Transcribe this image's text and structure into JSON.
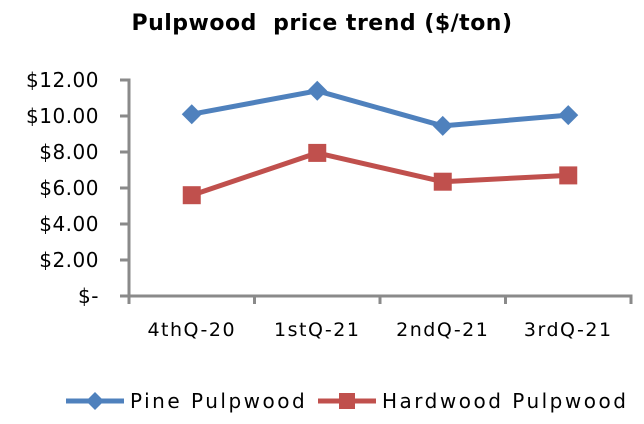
{
  "chart_data": {
    "type": "line",
    "title": "Pulpwood  price trend ($/ton)",
    "categories": [
      "4thQ-20",
      "1stQ-21",
      "2ndQ-21",
      "3rdQ-21"
    ],
    "series": [
      {
        "name": "Pine Pulpwood",
        "values": [
          10.1,
          11.4,
          9.45,
          10.05
        ],
        "color": "#4F81BD",
        "marker": "diamond"
      },
      {
        "name": "Hardwood Pulpwood",
        "values": [
          5.6,
          7.95,
          6.35,
          6.7
        ],
        "color": "#C0504D",
        "marker": "square"
      }
    ],
    "y_axis": {
      "min": 0,
      "max": 12,
      "tick_values": [
        12,
        10,
        8,
        6,
        4,
        2,
        0
      ],
      "tick_labels": [
        "$12.00",
        "$10.00",
        "$8.00",
        "$6.00",
        "$4.00",
        "$2.00",
        "$-"
      ]
    },
    "grid": false,
    "legend_position": "bottom",
    "axis_color": "#8A8A8A",
    "background_color": "#FFFFFF",
    "text_color": "#000000"
  }
}
